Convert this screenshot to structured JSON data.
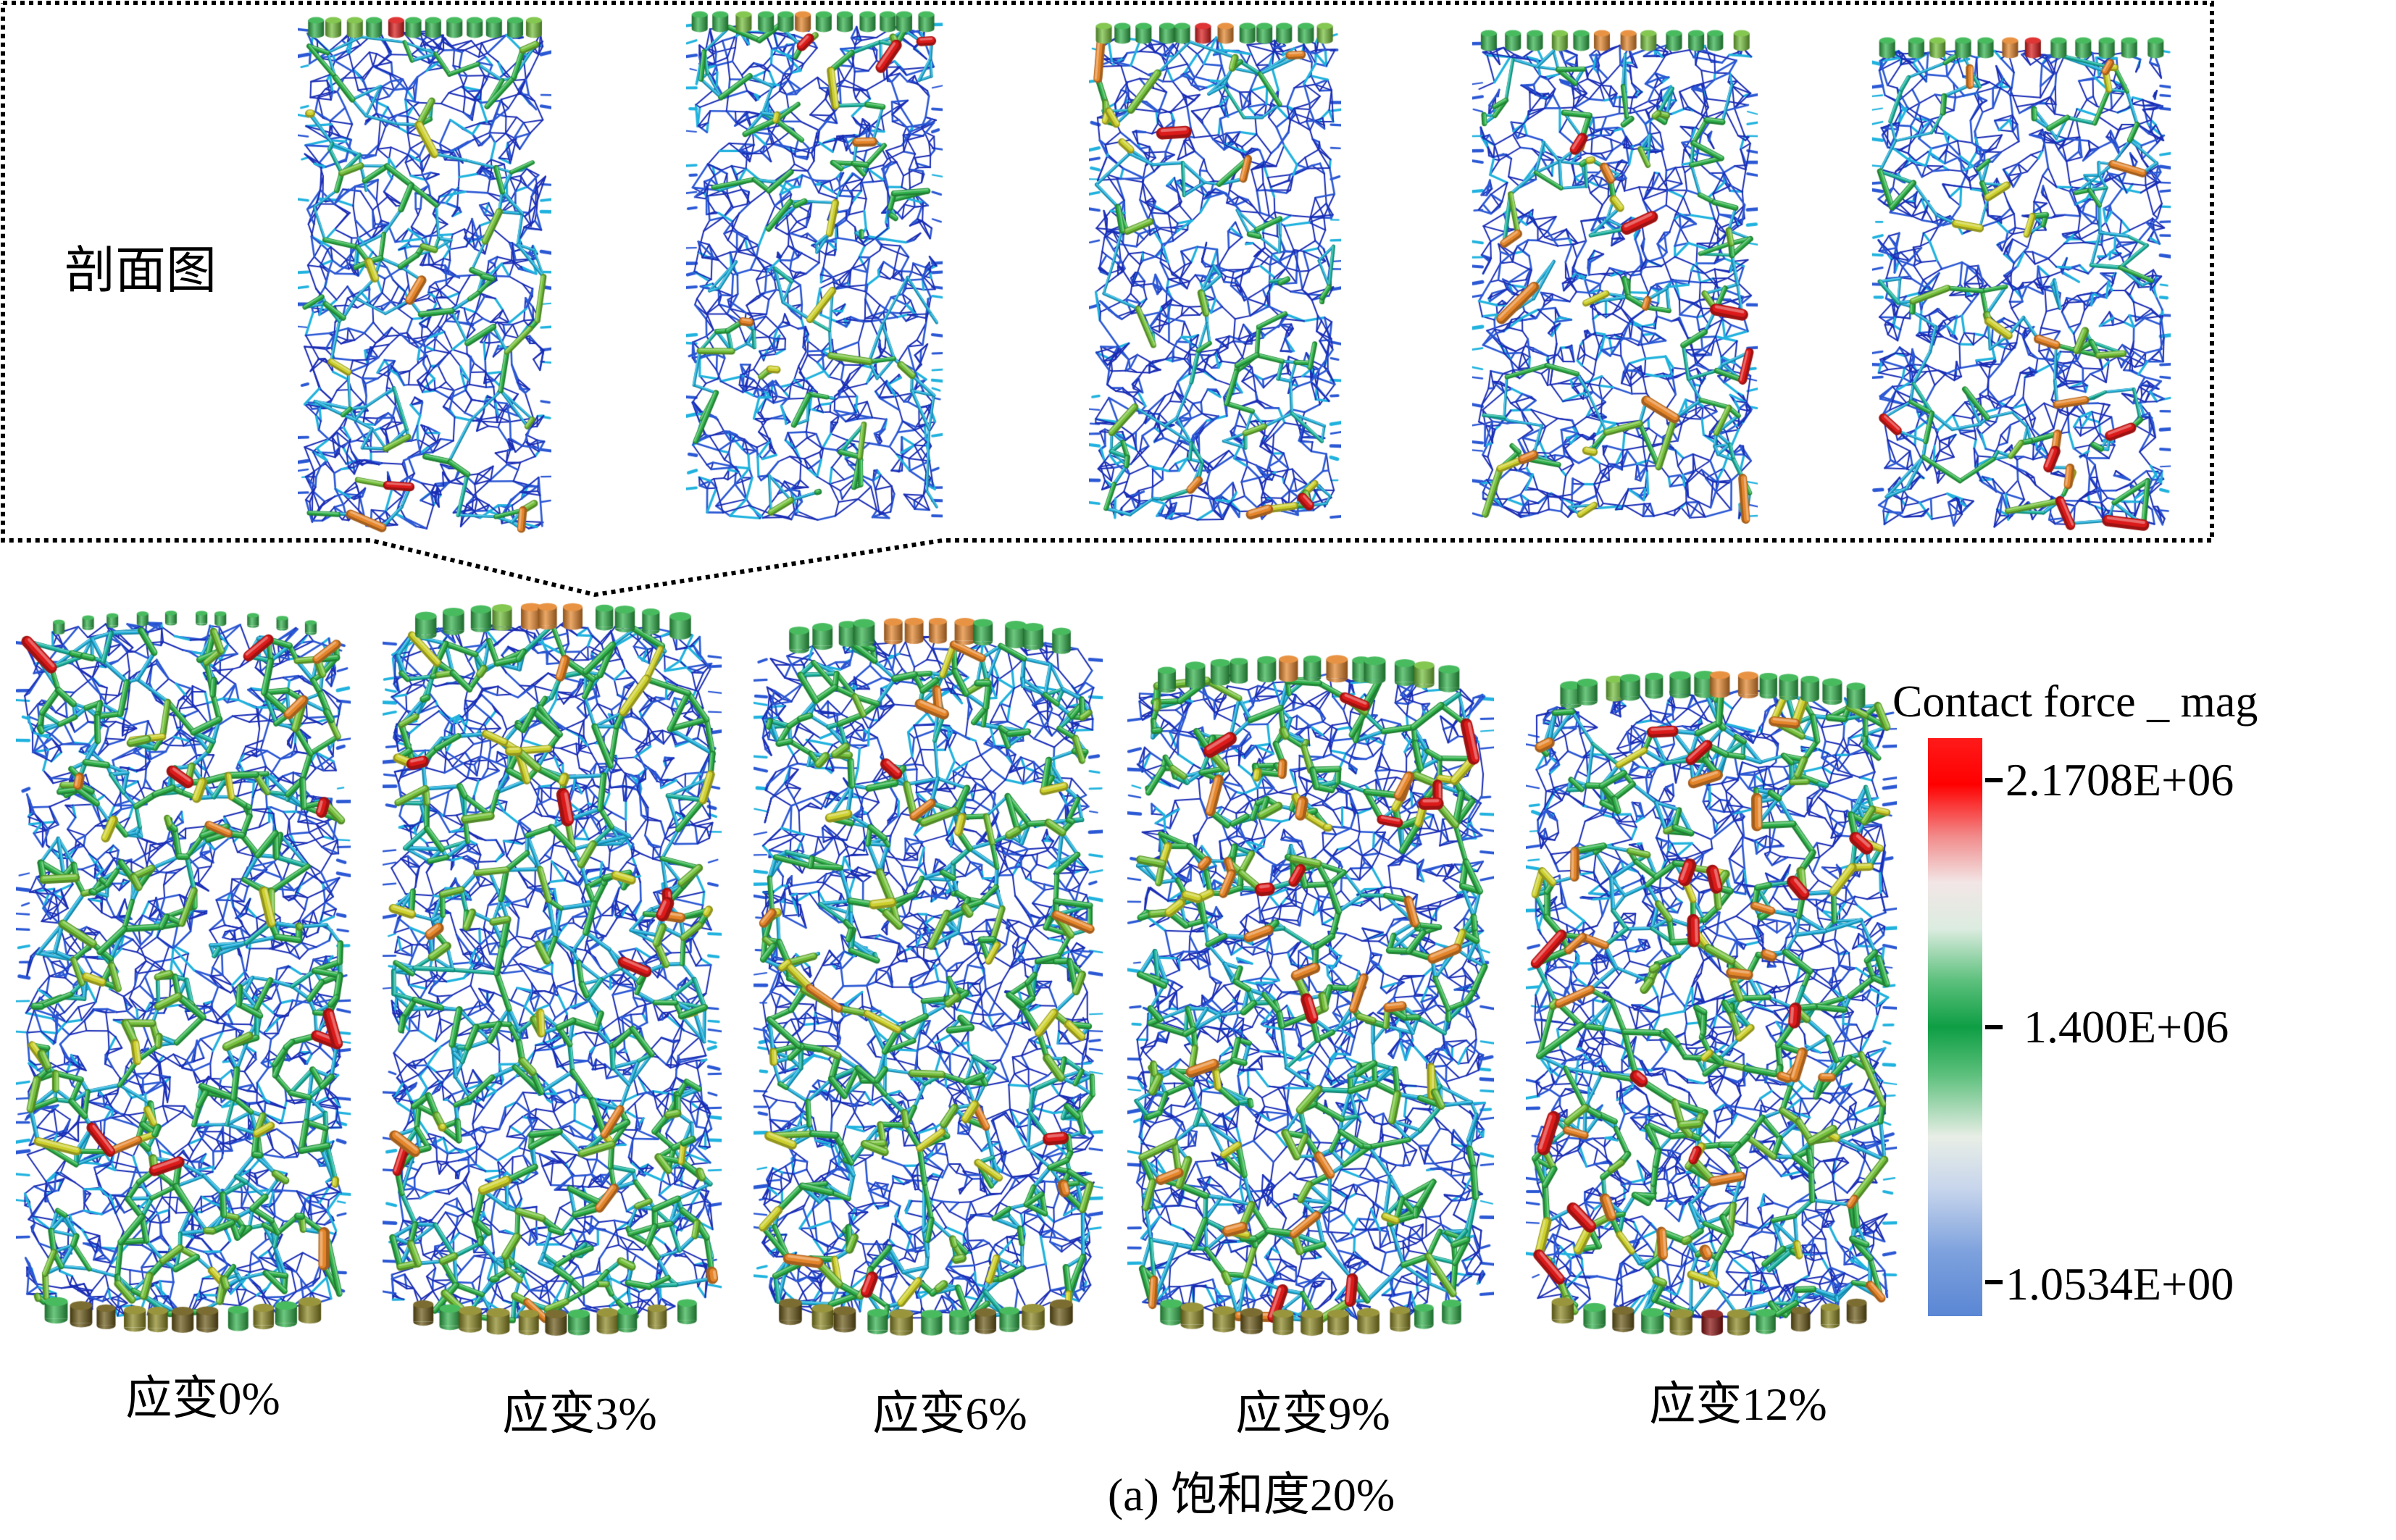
{
  "section_label": "剖面图",
  "specimens": [
    {
      "label": "应变0%"
    },
    {
      "label": "应变3%"
    },
    {
      "label": "应变6%"
    },
    {
      "label": "应变9%"
    },
    {
      "label": "应变12%"
    }
  ],
  "colorbar": {
    "title": "Contact force _ mag",
    "tick_labels": [
      "2.1708E+06",
      "1.400E+06",
      "1.0534E+00"
    ],
    "colors": [
      "#ff1a1a",
      "#ff0000",
      "#f28b8b",
      "#f2e6e6",
      "#dcece0",
      "#5cc07c",
      "#0e9e44",
      "#5abf7a",
      "#e8eee6",
      "#c7d5ec",
      "#7da1dd",
      "#5a86d4"
    ]
  },
  "caption": "(a) 饱和度20%"
}
